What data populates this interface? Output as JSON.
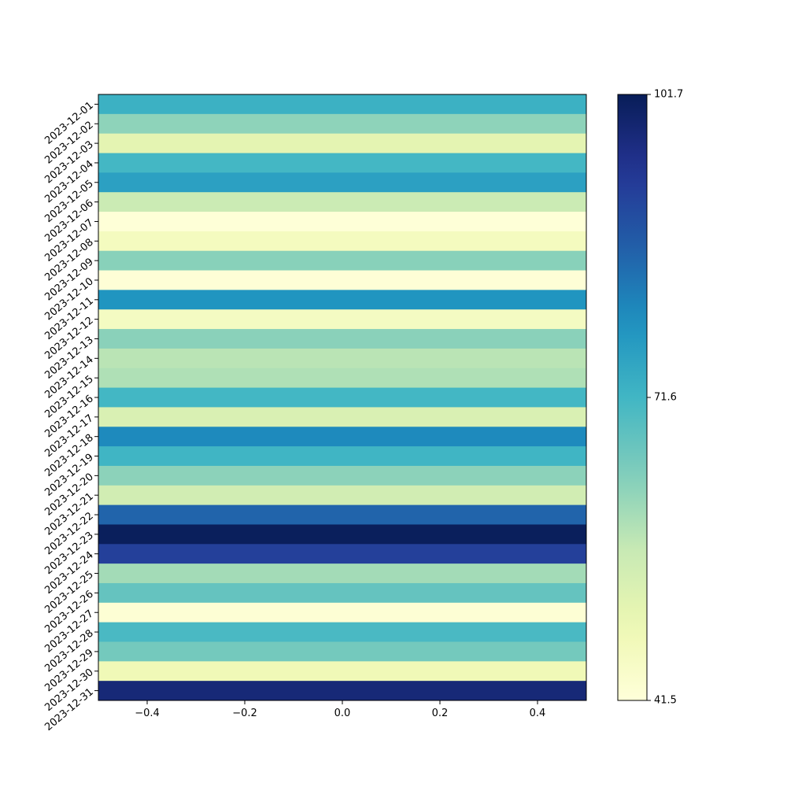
{
  "chart_data": {
    "type": "heatmap",
    "title": "",
    "xlabel": "",
    "ylabel": "",
    "colormap": "YlGnBu",
    "grid": false,
    "x_range": [
      -0.5,
      0.5
    ],
    "x_ticks": [
      -0.4,
      -0.2,
      0.0,
      0.2,
      0.4
    ],
    "x_tick_labels": [
      "−0.4",
      "−0.2",
      "0.0",
      "0.2",
      "0.4"
    ],
    "rows": [
      {
        "date": "2023-12-01",
        "value": 72.7
      },
      {
        "date": "2023-12-02",
        "value": 62.5
      },
      {
        "date": "2023-12-03",
        "value": 50.9
      },
      {
        "date": "2023-12-04",
        "value": 71.2
      },
      {
        "date": "2023-12-05",
        "value": 76.0
      },
      {
        "date": "2023-12-06",
        "value": 55.7
      },
      {
        "date": "2023-12-07",
        "value": 41.8
      },
      {
        "date": "2023-12-08",
        "value": 46.3
      },
      {
        "date": "2023-12-09",
        "value": 63.1
      },
      {
        "date": "2023-12-10",
        "value": 42.1
      },
      {
        "date": "2023-12-11",
        "value": 78.4
      },
      {
        "date": "2023-12-12",
        "value": 45.9
      },
      {
        "date": "2023-12-13",
        "value": 62.9
      },
      {
        "date": "2023-12-14",
        "value": 57.9
      },
      {
        "date": "2023-12-15",
        "value": 59.1
      },
      {
        "date": "2023-12-16",
        "value": 71.4
      },
      {
        "date": "2023-12-17",
        "value": 52.9
      },
      {
        "date": "2023-12-18",
        "value": 80.1
      },
      {
        "date": "2023-12-19",
        "value": 71.8
      },
      {
        "date": "2023-12-20",
        "value": 62.7
      },
      {
        "date": "2023-12-21",
        "value": 54.6
      },
      {
        "date": "2023-12-22",
        "value": 85.7
      },
      {
        "date": "2023-12-23",
        "value": 101.2
      },
      {
        "date": "2023-12-24",
        "value": 92.1
      },
      {
        "date": "2023-12-25",
        "value": 60.3
      },
      {
        "date": "2023-12-26",
        "value": 67.2
      },
      {
        "date": "2023-12-27",
        "value": 42.5
      },
      {
        "date": "2023-12-28",
        "value": 70.5
      },
      {
        "date": "2023-12-29",
        "value": 65.4
      },
      {
        "date": "2023-12-30",
        "value": 47.9
      },
      {
        "date": "2023-12-31",
        "value": 97.8
      }
    ],
    "colorbar": {
      "min": 41.5,
      "max": 101.7,
      "ticks": [
        41.5,
        71.6,
        101.7
      ],
      "tick_labels": [
        "41.5",
        "71.6",
        "101.7"
      ]
    }
  }
}
